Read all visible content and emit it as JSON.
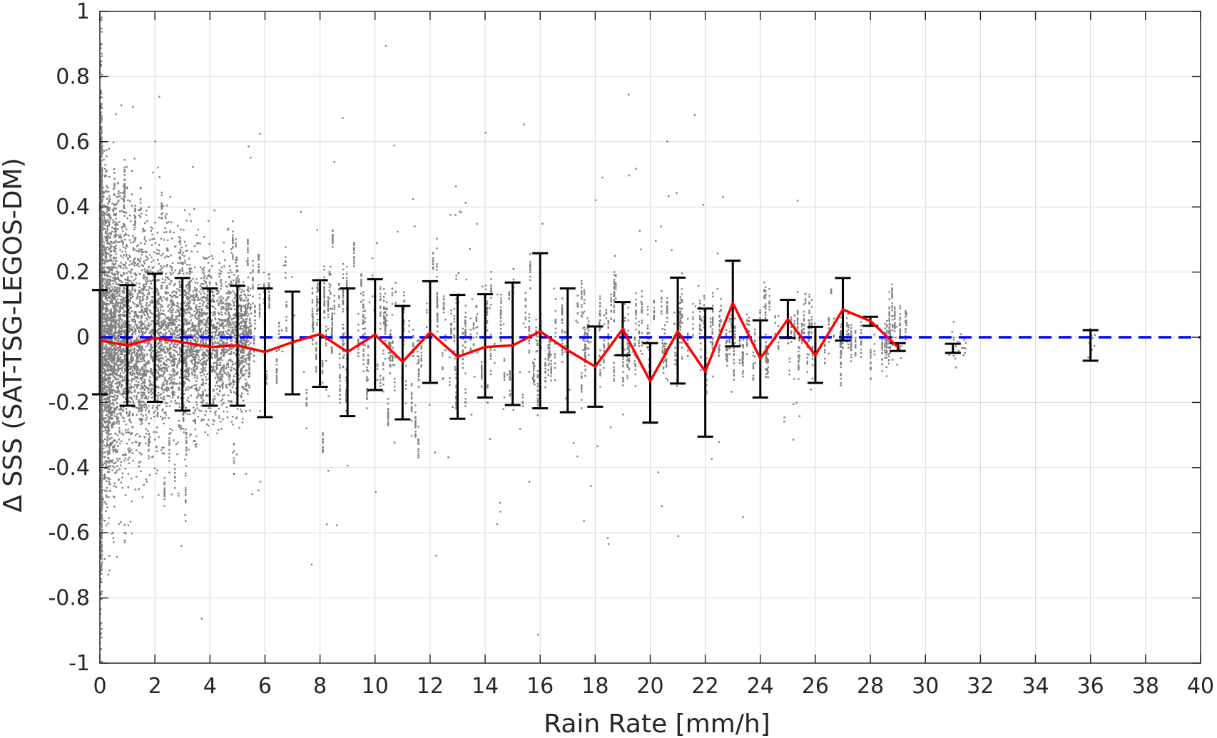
{
  "chart_data": {
    "type": "scatter",
    "xlabel": "Rain Rate [mm/h]",
    "ylabel": "Δ SSS (SAT-TSG-LEGOS-DM)",
    "xlim": [
      0,
      40
    ],
    "ylim": [
      -1,
      1
    ],
    "x_ticks": [
      0,
      2,
      4,
      6,
      8,
      10,
      12,
      14,
      16,
      18,
      20,
      22,
      24,
      26,
      28,
      30,
      32,
      34,
      36,
      38,
      40
    ],
    "y_ticks": [
      -1,
      -0.8,
      -0.6,
      -0.4,
      -0.2,
      0,
      0.2,
      0.4,
      0.6,
      0.8,
      1
    ],
    "x_tick_labels": [
      "0",
      "2",
      "4",
      "6",
      "8",
      "10",
      "12",
      "14",
      "16",
      "18",
      "20",
      "22",
      "24",
      "26",
      "28",
      "30",
      "32",
      "34",
      "36",
      "38",
      "40"
    ],
    "y_tick_labels": [
      "-1",
      "-0.8",
      "-0.6",
      "-0.4",
      "-0.2",
      "0",
      "0.2",
      "0.4",
      "0.6",
      "0.8",
      "1"
    ],
    "grid": true,
    "colors": {
      "points": "#808080",
      "mean_line": "#ff0000",
      "zero_line": "#0000ff",
      "error_bars": "#000000",
      "grid": "#d9d9d9",
      "axes": "#262626"
    },
    "scatter_description": "dense gray points; spread largest near 0 mm/h and narrowing with increasing rain rate",
    "series": [
      {
        "type": "line",
        "x": [
          0,
          1,
          2,
          3,
          4,
          5,
          6,
          7,
          8,
          9,
          10,
          11,
          12,
          13,
          14,
          15,
          16,
          17,
          18,
          19,
          20,
          21,
          22,
          23,
          24,
          25,
          26,
          27,
          28,
          29
        ],
        "y": [
          -0.01,
          -0.025,
          -0.002,
          -0.015,
          -0.03,
          -0.025,
          -0.045,
          -0.015,
          0.01,
          -0.045,
          0.008,
          -0.075,
          0.015,
          -0.06,
          -0.03,
          -0.025,
          0.018,
          -0.04,
          -0.09,
          0.025,
          -0.135,
          0.018,
          -0.105,
          0.105,
          -0.065,
          0.055,
          -0.055,
          0.085,
          0.05,
          -0.03
        ]
      },
      {
        "type": "errorbar",
        "x": [
          0,
          1,
          2,
          3,
          4,
          5,
          6,
          7,
          8,
          9,
          10,
          11,
          12,
          13,
          14,
          15,
          16,
          17,
          18,
          19,
          20,
          21,
          22,
          23,
          24,
          25,
          26,
          27,
          28,
          29,
          31,
          36
        ],
        "y": [
          -0.015,
          -0.025,
          -0.002,
          -0.022,
          -0.03,
          -0.025,
          -0.045,
          -0.015,
          0.01,
          -0.045,
          0.008,
          -0.078,
          0.015,
          -0.062,
          -0.028,
          -0.02,
          0.018,
          -0.04,
          -0.09,
          0.025,
          -0.14,
          0.018,
          -0.11,
          0.102,
          -0.068,
          0.055,
          -0.055,
          0.085,
          0.05,
          -0.03,
          -0.035,
          -0.025
        ],
        "upper": [
          0.145,
          0.16,
          0.195,
          0.182,
          0.15,
          0.158,
          0.15,
          0.14,
          0.175,
          0.15,
          0.178,
          0.096,
          0.172,
          0.13,
          0.132,
          0.168,
          0.258,
          0.15,
          0.033,
          0.108,
          -0.018,
          0.183,
          0.088,
          0.235,
          0.052,
          0.115,
          0.032,
          0.182,
          0.063,
          -0.018,
          -0.02,
          0.022
        ],
        "lower": [
          -0.175,
          -0.21,
          -0.198,
          -0.225,
          -0.21,
          -0.21,
          -0.245,
          -0.175,
          -0.152,
          -0.242,
          -0.162,
          -0.252,
          -0.14,
          -0.25,
          -0.185,
          -0.208,
          -0.218,
          -0.23,
          -0.213,
          -0.055,
          -0.262,
          -0.142,
          -0.305,
          -0.028,
          -0.185,
          -0.002,
          -0.14,
          -0.01,
          0.035,
          -0.042,
          -0.048,
          -0.072
        ]
      },
      {
        "type": "reference",
        "y": 0
      }
    ]
  }
}
